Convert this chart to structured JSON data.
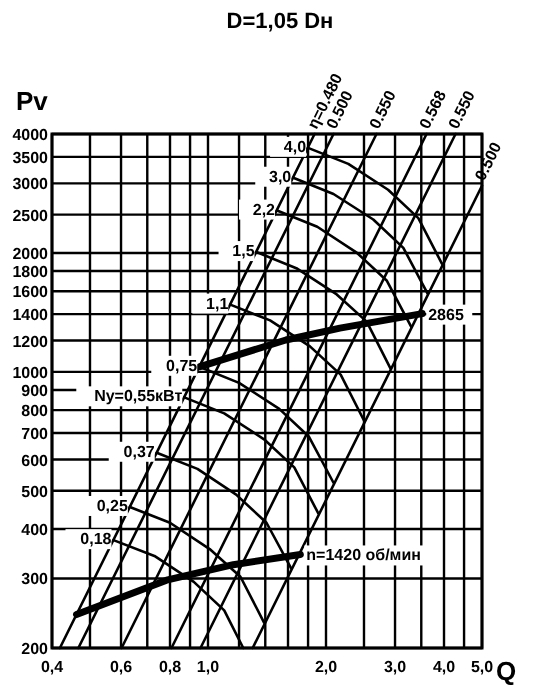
{
  "chart_data": {
    "type": "line",
    "title": "D=1,05 Dн",
    "xlabel": "Q",
    "ylabel": "Pv",
    "log": "xy",
    "grid": true,
    "xlim": [
      0.4,
      5.0
    ],
    "ylim": [
      200,
      4000
    ],
    "xticks": [
      {
        "value": 0.4,
        "label": "0,4"
      },
      {
        "value": 0.5,
        "label": null
      },
      {
        "value": 0.6,
        "label": "0,6"
      },
      {
        "value": 0.7,
        "label": null
      },
      {
        "value": 0.8,
        "label": "0,8"
      },
      {
        "value": 0.9,
        "label": null
      },
      {
        "value": 1.0,
        "label": "1,0"
      },
      {
        "value": 1.2,
        "label": null
      },
      {
        "value": 1.4,
        "label": null
      },
      {
        "value": 1.6,
        "label": null
      },
      {
        "value": 1.8,
        "label": null
      },
      {
        "value": 2.0,
        "label": "2,0"
      },
      {
        "value": 2.5,
        "label": null
      },
      {
        "value": 3.0,
        "label": "3,0"
      },
      {
        "value": 3.5,
        "label": null
      },
      {
        "value": 4.0,
        "label": "4,0"
      },
      {
        "value": 4.5,
        "label": null
      },
      {
        "value": 5.0,
        "label": "5,0"
      }
    ],
    "yticks": [
      200,
      300,
      400,
      500,
      600,
      700,
      800,
      900,
      1000,
      1200,
      1400,
      1600,
      1800,
      2000,
      2500,
      3000,
      3500,
      4000
    ],
    "series": [
      {
        "name": "η=0.480",
        "color": "#000000",
        "x": [
          0.419,
          1.87
        ],
        "values": [
          200,
          4000
        ]
      },
      {
        "name": "0.500",
        "color": "#000000",
        "x": [
          0.467,
          2.09
        ],
        "values": [
          200,
          4000
        ]
      },
      {
        "name": "0.550",
        "color": "#000000",
        "x": [
          0.602,
          2.69
        ],
        "values": [
          200,
          4000
        ]
      },
      {
        "name": "0.568",
        "color": "#000000",
        "x": [
          0.807,
          3.61
        ],
        "values": [
          200,
          4000
        ]
      },
      {
        "name": "0.550",
        "color": "#000000",
        "x": [
          0.957,
          4.28
        ],
        "values": [
          200,
          4000
        ]
      },
      {
        "name": "0.500",
        "color": "#000000",
        "x": [
          1.3,
          5.0
        ],
        "values": [
          200,
          2959
        ]
      },
      {
        "name": "4,0",
        "color": "#000000",
        "x": [
          1.8,
          2.28,
          2.88,
          3.44,
          3.95
        ],
        "values": [
          3690,
          3360,
          2890,
          2450,
          1880
        ]
      },
      {
        "name": "3,0",
        "color": "#000000",
        "x": [
          1.65,
          2.09,
          2.64,
          3.15,
          3.63
        ],
        "values": [
          3100,
          2820,
          2430,
          2060,
          1580
        ]
      },
      {
        "name": "2,2",
        "color": "#000000",
        "x": [
          1.5,
          1.9,
          2.4,
          2.86,
          3.3
        ],
        "values": [
          2560,
          2330,
          2000,
          1700,
          1300
        ]
      },
      {
        "name": "1,5",
        "color": "#000000",
        "x": [
          1.33,
          1.68,
          2.13,
          2.54,
          2.92
        ],
        "values": [
          2010,
          1830,
          1570,
          1340,
          1020
        ]
      },
      {
        "name": "1,1",
        "color": "#000000",
        "x": [
          1.14,
          1.44,
          1.82,
          2.18,
          2.5
        ],
        "values": [
          1480,
          1350,
          1160,
          984,
          753
        ]
      },
      {
        "name": "0,75",
        "color": "#000000",
        "x": [
          0.95,
          1.2,
          1.52,
          1.81,
          2.09
        ],
        "values": [
          1030,
          938,
          806,
          685,
          524
        ]
      },
      {
        "name": "Ny=0,55кВт",
        "color": "#000000",
        "x": [
          0.87,
          1.1,
          1.39,
          1.66,
          1.91
        ],
        "values": [
          862,
          785,
          675,
          573,
          439
        ]
      },
      {
        "name": "0,37",
        "color": "#000000",
        "x": [
          0.74,
          0.94,
          1.18,
          1.41,
          1.63
        ],
        "values": [
          624,
          568,
          489,
          415,
          318
        ]
      },
      {
        "name": "0,25",
        "color": "#000000",
        "x": [
          0.632,
          0.8,
          1.01,
          1.21,
          1.39
        ],
        "values": [
          455,
          415,
          356,
          303,
          232
        ]
      },
      {
        "name": "0,18",
        "color": "#000000",
        "x": [
          0.574,
          0.73,
          0.92,
          1.1,
          1.23
        ],
        "values": [
          375,
          342,
          294,
          249,
          200
        ]
      },
      {
        "name": "2865",
        "color": "#000000",
        "x": [
          0.95,
          1.58,
          2.17,
          3.52
        ],
        "values": [
          1030,
          1204,
          1290,
          1404
        ]
      },
      {
        "name": "n=1420 об/мин",
        "color": "#000000",
        "x": [
          0.462,
          0.784,
          1.16,
          1.72
        ],
        "values": [
          243,
          297,
          325,
          345
        ]
      }
    ]
  }
}
